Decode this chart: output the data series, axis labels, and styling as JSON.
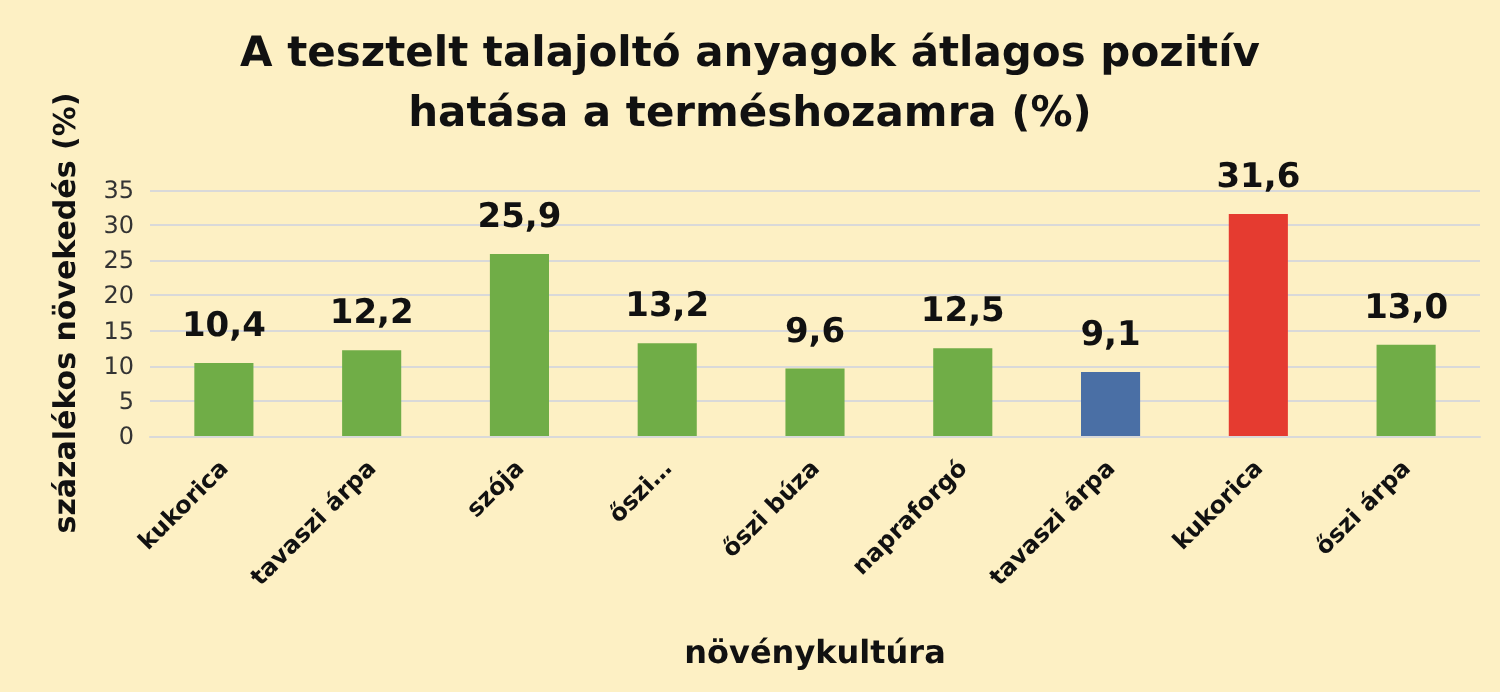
{
  "chart_data": {
    "type": "bar",
    "title": "A tesztelt talajoltó anyagok átlagos pozitív\nhatása a terméshozamra (%)",
    "xlabel": "növénykultúra",
    "ylabel": "százalékos növekedés (%)",
    "categories": [
      "kukorica",
      "tavaszi árpa",
      "szója",
      "őszi…",
      "őszi búza",
      "napraforgó",
      "tavaszi árpa",
      "kukorica",
      "őszi árpa"
    ],
    "values": [
      10.4,
      12.2,
      25.9,
      13.2,
      9.6,
      12.5,
      9.1,
      31.6,
      13.0
    ],
    "value_labels": [
      "10,4",
      "12,2",
      "25,9",
      "13,2",
      "9,6",
      "12,5",
      "9,1",
      "31,6",
      "13,0"
    ],
    "colors": [
      "#70ad47",
      "#70ad47",
      "#70ad47",
      "#70ad47",
      "#70ad47",
      "#70ad47",
      "#4a6fa5",
      "#e53b30",
      "#70ad47"
    ],
    "ylim": [
      0,
      35
    ],
    "yticks": [
      0,
      5,
      10,
      15,
      20,
      25,
      30,
      35
    ],
    "grid": "y"
  }
}
